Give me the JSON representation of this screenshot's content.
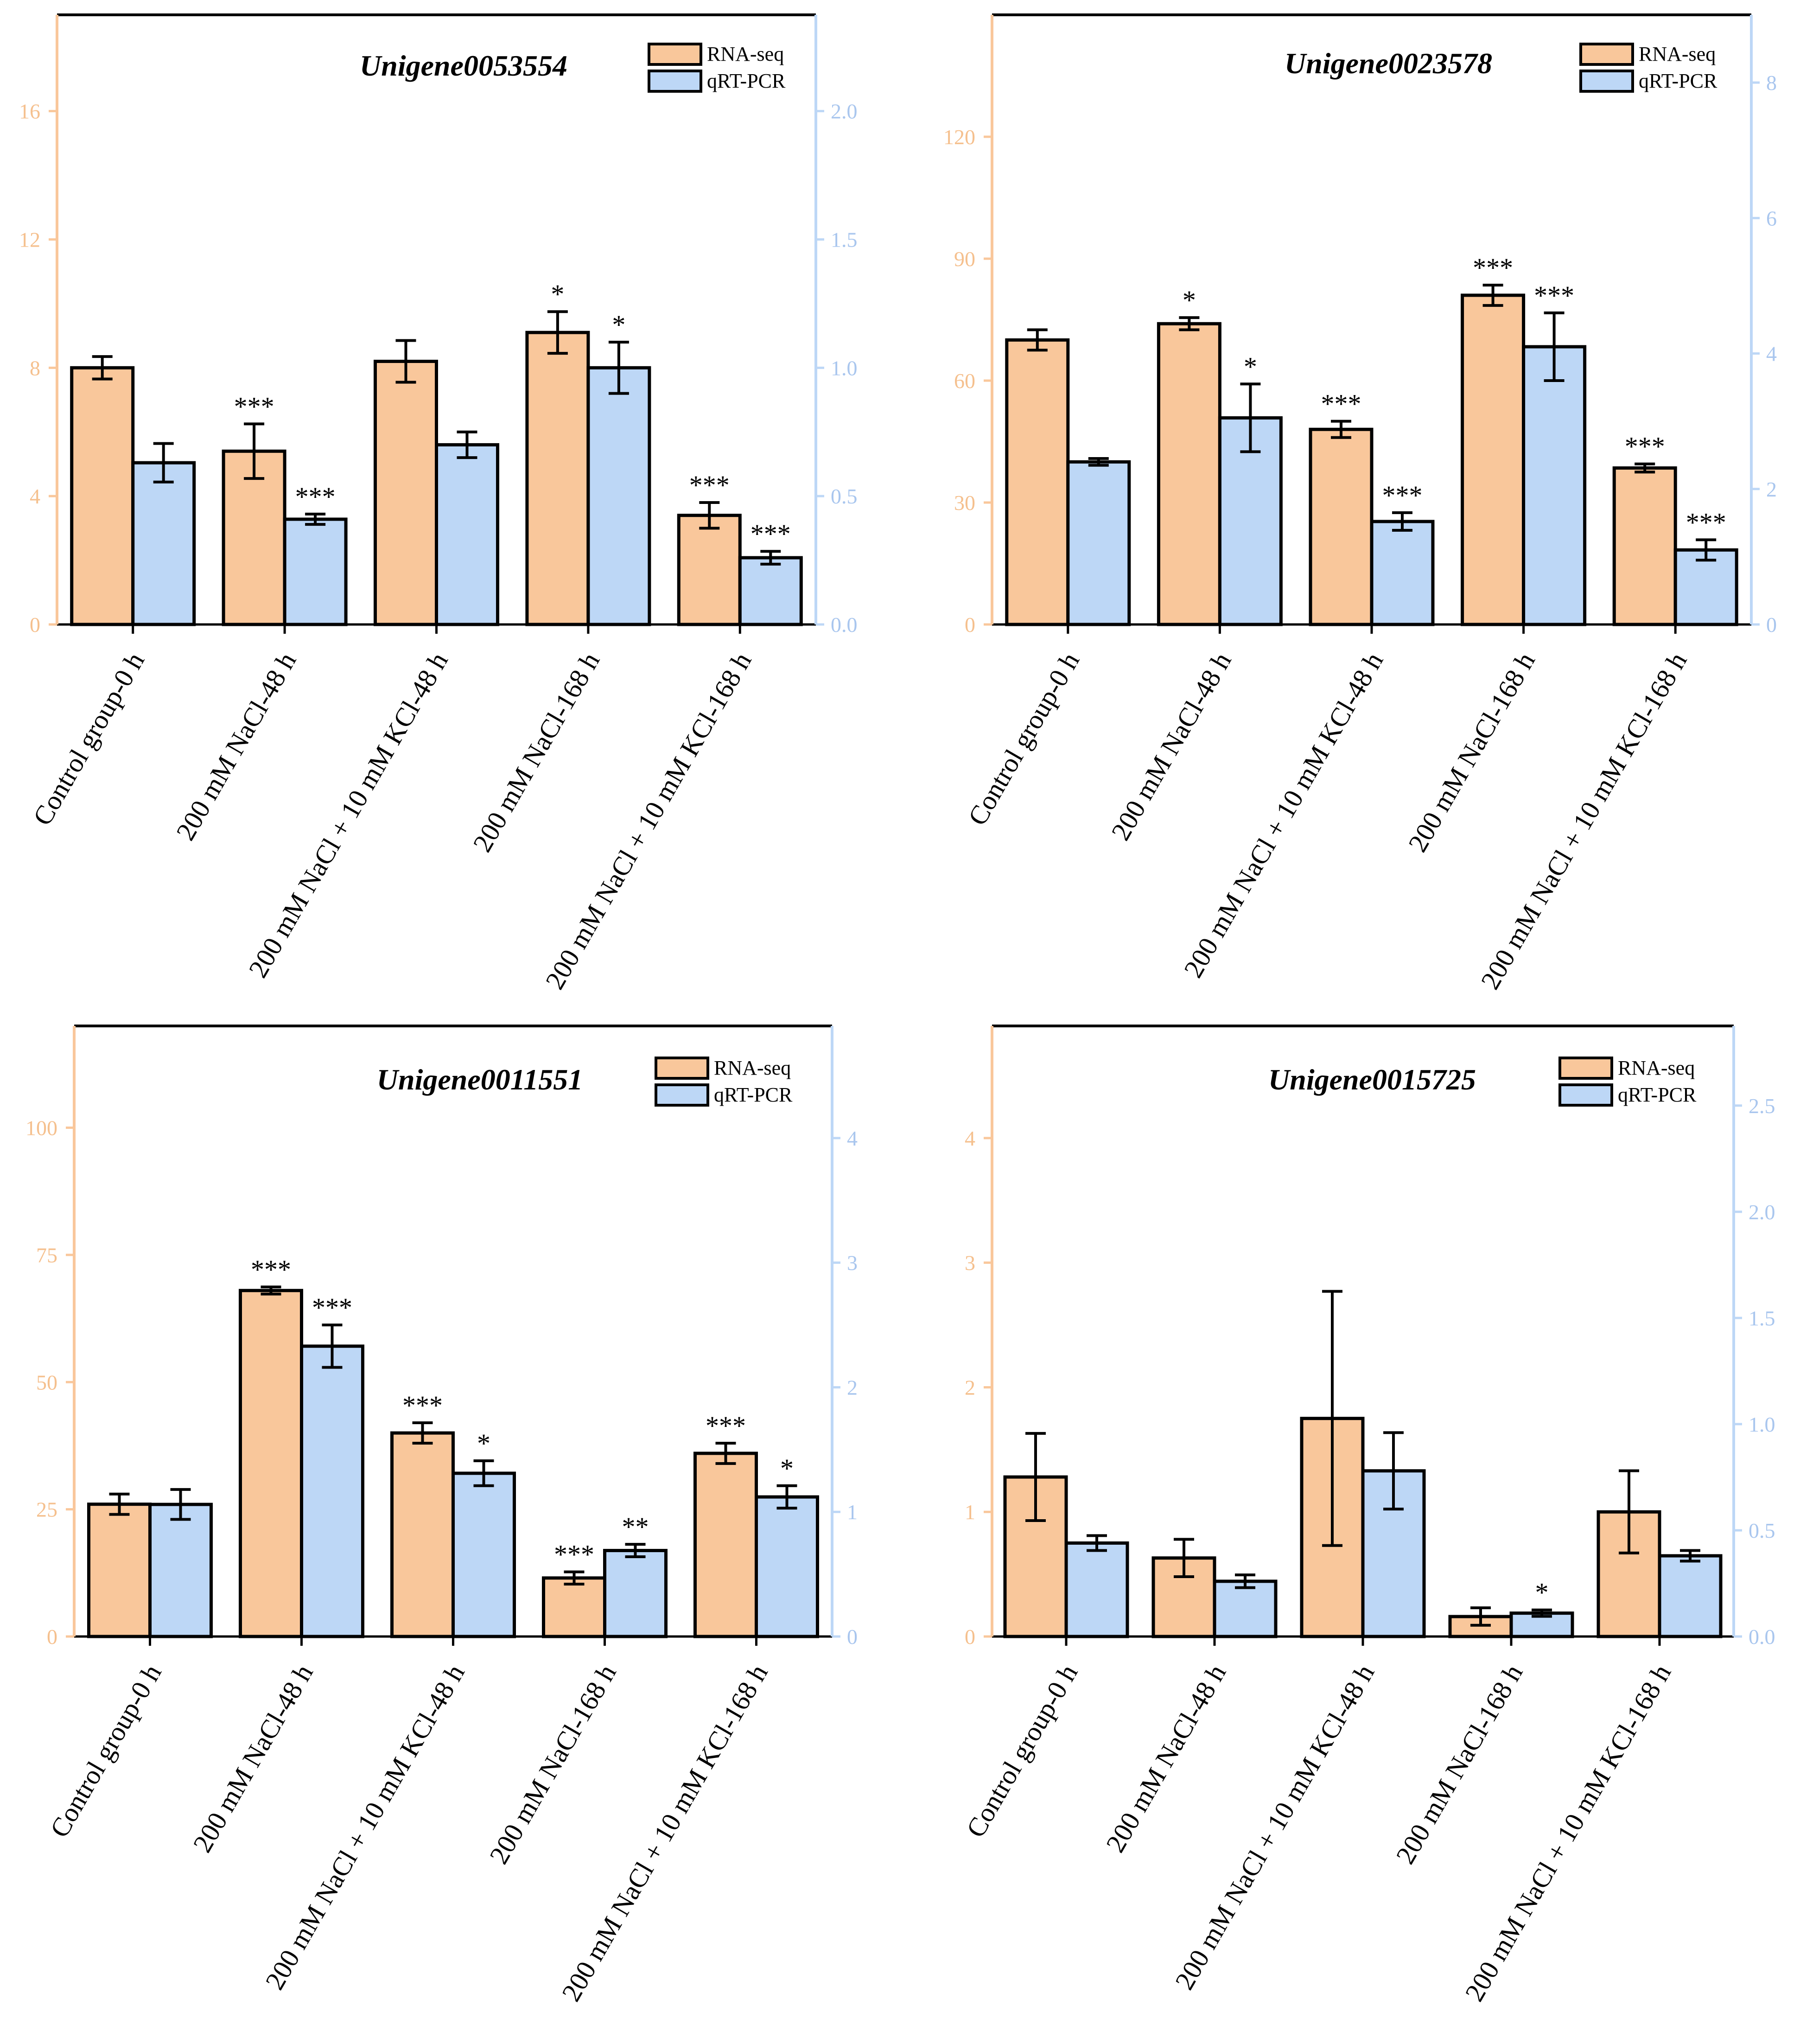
{
  "colors": {
    "rna": "#F9C79B",
    "pcr": "#BDD7F6",
    "left_axis": "#F9C79B",
    "right_axis": "#BDD7F6",
    "left_tick_text": "#F5C08E",
    "right_tick_text": "#A9C6EE",
    "frame": "#000000"
  },
  "chart_data": [
    {
      "type": "bar",
      "title": "Unigene0053554",
      "categories": [
        "Control group-0 h",
        "200 mM NaCl-48 h",
        "200 mM NaCl + 10 mM KCl-48 h",
        "200 mM NaCl-168 h",
        "200 mM NaCl + 10 mM KCl-168 h"
      ],
      "legend": [
        "RNA-seq",
        "qRT-PCR"
      ],
      "left_axis": {
        "min": 0,
        "max": 19,
        "ticks": [
          0,
          4,
          8,
          12,
          16
        ],
        "tick_labels": [
          "0",
          "4",
          "8",
          "12",
          "16"
        ]
      },
      "right_axis": {
        "min": 0,
        "max": 2.375,
        "ticks": [
          0,
          0.5,
          1.0,
          1.5,
          2.0
        ],
        "tick_labels": [
          "0.0",
          "0.5",
          "1.0",
          "1.5",
          "2.0"
        ]
      },
      "series": [
        {
          "name": "RNA-seq",
          "axis": "left",
          "values": [
            8.0,
            5.4,
            8.2,
            9.1,
            3.4
          ],
          "errors": [
            0.35,
            0.85,
            0.65,
            0.65,
            0.4
          ],
          "significance": [
            "",
            "***",
            "",
            "*",
            "***"
          ]
        },
        {
          "name": "qRT-PCR",
          "axis": "right",
          "values": [
            0.63,
            0.41,
            0.7,
            1.0,
            0.26
          ],
          "errors": [
            0.075,
            0.02,
            0.05,
            0.1,
            0.025
          ],
          "significance": [
            "",
            "***",
            "",
            "*",
            "***"
          ]
        }
      ]
    },
    {
      "type": "bar",
      "title": "Unigene0023578",
      "categories": [
        "Control group-0 h",
        "200 mM NaCl-48 h",
        "200 mM NaCl + 10 mM KCl-48 h",
        "200 mM NaCl-168 h",
        "200 mM NaCl + 10 mM KCl-168 h"
      ],
      "legend": [
        "RNA-seq",
        "qRT-PCR"
      ],
      "left_axis": {
        "min": 0,
        "max": 150,
        "ticks": [
          0,
          30,
          60,
          90,
          120
        ],
        "tick_labels": [
          "0",
          "30",
          "60",
          "90",
          "120"
        ]
      },
      "right_axis": {
        "min": 0,
        "max": 9,
        "ticks": [
          0,
          2,
          4,
          6,
          8
        ],
        "tick_labels": [
          "0",
          "2",
          "4",
          "6",
          "8"
        ]
      },
      "series": [
        {
          "name": "RNA-seq",
          "axis": "left",
          "values": [
            70,
            74,
            48,
            81,
            38.5
          ],
          "errors": [
            2.5,
            1.5,
            2.0,
            2.5,
            1.0
          ],
          "significance": [
            "",
            "*",
            "***",
            "***",
            "***"
          ]
        },
        {
          "name": "qRT-PCR",
          "axis": "right",
          "values": [
            2.4,
            3.05,
            1.52,
            4.1,
            1.1
          ],
          "errors": [
            0.05,
            0.5,
            0.13,
            0.5,
            0.15
          ],
          "significance": [
            "",
            "*",
            "***",
            "***",
            "***"
          ]
        }
      ]
    },
    {
      "type": "bar",
      "title": "Unigene0011551",
      "categories": [
        "Control group-0 h",
        "200 mM NaCl-48 h",
        "200 mM NaCl + 10 mM KCl-48 h",
        "200 mM NaCl-168 h",
        "200 mM NaCl + 10 mM KCl-168 h"
      ],
      "legend": [
        "RNA-seq",
        "qRT-PCR"
      ],
      "left_axis": {
        "min": 0,
        "max": 120,
        "ticks": [
          0,
          25,
          50,
          75,
          100
        ],
        "tick_labels": [
          "0",
          "25",
          "50",
          "75",
          "100"
        ]
      },
      "right_axis": {
        "min": 0,
        "max": 4.9,
        "ticks": [
          0,
          1,
          2,
          3,
          4
        ],
        "tick_labels": [
          "0",
          "1",
          "2",
          "3",
          "4"
        ]
      },
      "series": [
        {
          "name": "RNA-seq",
          "axis": "left",
          "values": [
            26,
            68,
            40,
            11.5,
            36
          ],
          "errors": [
            2.0,
            0.7,
            2.0,
            1.2,
            2.0
          ],
          "significance": [
            "",
            "***",
            "***",
            "***",
            "***"
          ]
        },
        {
          "name": "qRT-PCR",
          "axis": "right",
          "values": [
            1.06,
            2.33,
            1.31,
            0.69,
            1.12
          ],
          "errors": [
            0.12,
            0.17,
            0.1,
            0.05,
            0.09
          ],
          "significance": [
            "",
            "***",
            "*",
            "**",
            "*"
          ]
        }
      ]
    },
    {
      "type": "bar",
      "title": "Unigene0015725",
      "categories": [
        "Control group-0 h",
        "200 mM NaCl-48 h",
        "200 mM NaCl + 10 mM KCl-48 h",
        "200 mM NaCl-168 h",
        "200 mM NaCl + 10 mM KCl-168 h"
      ],
      "legend": [
        "RNA-seq",
        "qRT-PCR"
      ],
      "left_axis": {
        "min": 0,
        "max": 4.9,
        "ticks": [
          0,
          1,
          2,
          3,
          4
        ],
        "tick_labels": [
          "0",
          "1",
          "2",
          "3",
          "4"
        ]
      },
      "right_axis": {
        "min": 0,
        "max": 2.875,
        "ticks": [
          0,
          0.5,
          1.0,
          1.5,
          2.0,
          2.5
        ],
        "tick_labels": [
          "0.0",
          "0.5",
          "1.0",
          "1.5",
          "2.0",
          "2.5"
        ]
      },
      "series": [
        {
          "name": "RNA-seq",
          "axis": "left",
          "values": [
            1.28,
            0.63,
            1.75,
            0.16,
            1.0
          ],
          "errors": [
            0.35,
            0.15,
            1.02,
            0.07,
            0.33
          ],
          "significance": [
            "",
            "",
            "",
            "",
            ""
          ]
        },
        {
          "name": "qRT-PCR",
          "axis": "right",
          "values": [
            0.44,
            0.26,
            0.78,
            0.11,
            0.38
          ],
          "errors": [
            0.035,
            0.03,
            0.18,
            0.015,
            0.025
          ],
          "significance": [
            "",
            "",
            "",
            "*",
            ""
          ]
        }
      ]
    }
  ]
}
